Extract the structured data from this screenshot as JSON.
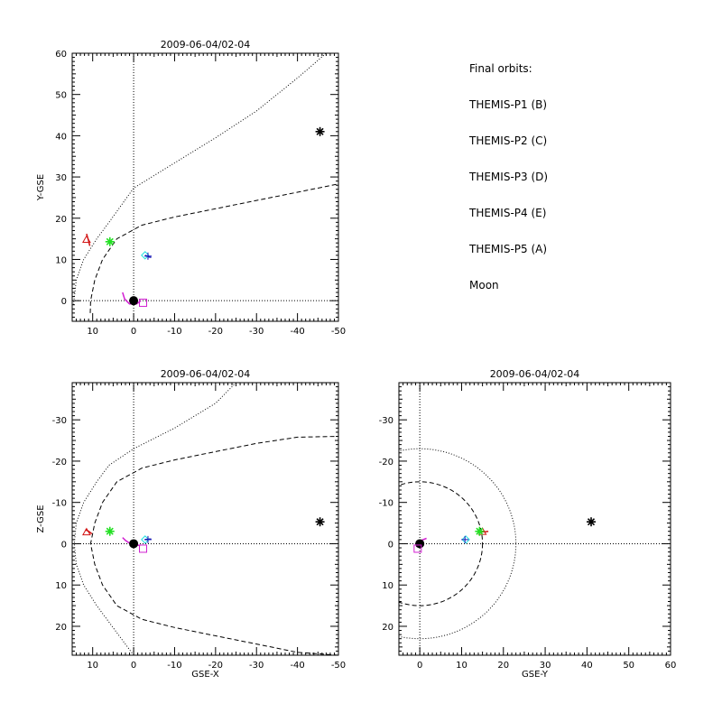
{
  "chart_data": [
    {
      "type": "scatter",
      "title": "2009-06-04/02-04",
      "xlabel": "",
      "ylabel": "Y-GSE",
      "xlim": [
        15,
        -50
      ],
      "ylim": [
        60,
        -5
      ],
      "xticks": [
        10,
        0,
        -10,
        -20,
        -30,
        -40,
        -50
      ],
      "yticks": [
        0,
        10,
        20,
        30,
        40,
        50,
        60
      ],
      "markers": [
        {
          "name": "THEMIS-P1 (B)",
          "symbol": "triangle",
          "color": "#d21414",
          "x": 11.5,
          "y": 14.8
        },
        {
          "name": "THEMIS-P2 (C)",
          "symbol": "asterisk",
          "color": "#22e022",
          "x": 5.8,
          "y": 14.3
        },
        {
          "name": "THEMIS-P3 (D)",
          "symbol": "diamond",
          "color": "#22e0e0",
          "x": -2.8,
          "y": 11.0
        },
        {
          "name": "THEMIS-P4 (E)",
          "symbol": "plus",
          "color": "#1414b4",
          "x": -3.5,
          "y": 10.8
        },
        {
          "name": "THEMIS-P5 (A)",
          "symbol": "square",
          "color": "#d21fd2",
          "x": -2.3,
          "y": -0.5
        },
        {
          "name": "Moon",
          "symbol": "asterisk",
          "color": "#000000",
          "x": -45.5,
          "y": 41.0
        }
      ],
      "orbit_arcs": [
        {
          "color": "#d21414",
          "points": [
            [
              11.5,
              16.2
            ],
            [
              11.0,
              14.5
            ],
            [
              10.7,
              13.3
            ]
          ]
        },
        {
          "color": "#d21fd2",
          "points": [
            [
              2.7,
              2.0
            ],
            [
              2.2,
              0.4
            ],
            [
              1.0,
              -0.8
            ],
            [
              -0.7,
              -0.8
            ],
            [
              -1.8,
              0.0
            ]
          ]
        },
        {
          "color": "#1414b4",
          "points": [
            [
              -2.8,
              11.0
            ],
            [
              -3.7,
              10.6
            ],
            [
              -4.3,
              10.5
            ]
          ]
        }
      ],
      "earth": {
        "x": 0,
        "y": 0
      },
      "magnetopause": [
        [
          10.6,
          -3
        ],
        [
          10.5,
          0
        ],
        [
          9.5,
          5
        ],
        [
          7.6,
          10
        ],
        [
          4.1,
          15
        ],
        [
          -2.0,
          18.3
        ],
        [
          -10,
          20.3
        ],
        [
          -20,
          22.3
        ],
        [
          -30,
          24.3
        ],
        [
          -40,
          26.3
        ],
        [
          -50,
          28.3
        ]
      ],
      "bow_shock": [
        [
          14.7,
          -1
        ],
        [
          14,
          5
        ],
        [
          12.2,
          10
        ],
        [
          9.0,
          15
        ],
        [
          6.0,
          19
        ],
        [
          0,
          27.3
        ],
        [
          -10,
          33.4
        ],
        [
          -20,
          39.5
        ],
        [
          -30,
          46
        ],
        [
          -40,
          54
        ],
        [
          -47,
          60
        ]
      ]
    },
    {
      "type": "scatter",
      "title": "2009-06-04/02-04",
      "xlabel": "GSE-X",
      "ylabel": "Z-GSE",
      "xlim": [
        15,
        -50
      ],
      "ylim": [
        -39,
        27
      ],
      "xticks": [
        10,
        0,
        -10,
        -20,
        -30,
        -40,
        -50
      ],
      "yticks": [
        20,
        10,
        0,
        -10,
        -20,
        -30
      ],
      "markers": [
        {
          "name": "THEMIS-P1 (B)",
          "symbol": "triangle",
          "color": "#d21414",
          "x": 11.5,
          "y": -2.8
        },
        {
          "name": "THEMIS-P2 (C)",
          "symbol": "asterisk",
          "color": "#22e022",
          "x": 5.8,
          "y": -3.0
        },
        {
          "name": "THEMIS-P3 (D)",
          "symbol": "diamond",
          "color": "#22e0e0",
          "x": -2.8,
          "y": -1.0
        },
        {
          "name": "THEMIS-P4 (E)",
          "symbol": "plus",
          "color": "#1414b4",
          "x": -3.5,
          "y": -1.0
        },
        {
          "name": "THEMIS-P5 (A)",
          "symbol": "square",
          "color": "#d21fd2",
          "x": -2.3,
          "y": 1.2
        },
        {
          "name": "Moon",
          "symbol": "asterisk",
          "color": "#000000",
          "x": -45.5,
          "y": -5.3
        }
      ],
      "orbit_arcs": [
        {
          "color": "#d21414",
          "points": [
            [
              11.8,
              -3.4
            ],
            [
              11.0,
              -3.0
            ],
            [
              10.2,
              -2.4
            ]
          ]
        },
        {
          "color": "#d21fd2",
          "points": [
            [
              2.7,
              -1.5
            ],
            [
              2.0,
              -0.8
            ],
            [
              0.8,
              0.0
            ],
            [
              -0.6,
              0.2
            ],
            [
              -1.6,
              0.5
            ]
          ]
        },
        {
          "color": "#1414b4",
          "points": [
            [
              -2.8,
              -1.0
            ],
            [
              -3.7,
              -1.1
            ],
            [
              -4.3,
              -1.1
            ]
          ]
        }
      ],
      "earth": {
        "x": 0,
        "y": 0
      },
      "magnetopause": [
        [
          -50,
          27
        ],
        [
          -40,
          26.3
        ],
        [
          -30,
          24.3
        ],
        [
          -20,
          22.3
        ],
        [
          -10,
          20.3
        ],
        [
          -2.0,
          18.3
        ],
        [
          4.1,
          15
        ],
        [
          7.6,
          10
        ],
        [
          9.5,
          5
        ],
        [
          10.5,
          0
        ],
        [
          9.5,
          -5
        ],
        [
          7.6,
          -10
        ],
        [
          4.1,
          -15
        ],
        [
          -2.0,
          -18.3
        ],
        [
          -10,
          -20.3
        ],
        [
          -20,
          -22.3
        ],
        [
          -30,
          -24.3
        ],
        [
          -40,
          -25.8
        ],
        [
          -50,
          -26
        ]
      ],
      "bow_shock": [
        [
          0,
          27
        ],
        [
          6.0,
          19
        ],
        [
          9.0,
          15
        ],
        [
          12.2,
          10
        ],
        [
          14,
          5
        ],
        [
          14.5,
          0
        ],
        [
          14,
          -5
        ],
        [
          12.2,
          -10
        ],
        [
          9.0,
          -15
        ],
        [
          6.0,
          -19
        ],
        [
          0,
          -23
        ],
        [
          -10,
          -28
        ],
        [
          -20,
          -34
        ],
        [
          -25,
          -39
        ]
      ]
    },
    {
      "type": "scatter",
      "title": "2009-06-04/02-04",
      "xlabel": "GSE-Y",
      "ylabel": "",
      "xlim": [
        -5,
        60
      ],
      "ylim": [
        -39,
        27
      ],
      "xticks": [
        0,
        10,
        20,
        30,
        40,
        50,
        60
      ],
      "yticks": [
        20,
        10,
        0,
        -10,
        -20,
        -30
      ],
      "markers": [
        {
          "name": "THEMIS-P1 (B)",
          "symbol": "triangle",
          "color": "#d21414",
          "x": 15.0,
          "y": -2.9
        },
        {
          "name": "THEMIS-P2 (C)",
          "symbol": "asterisk",
          "color": "#22e022",
          "x": 14.3,
          "y": -3.0
        },
        {
          "name": "THEMIS-P3 (D)",
          "symbol": "diamond",
          "color": "#22e0e0",
          "x": 11.0,
          "y": -1.0
        },
        {
          "name": "THEMIS-P4 (E)",
          "symbol": "plus",
          "color": "#1414b4",
          "x": 10.8,
          "y": -1.0
        },
        {
          "name": "THEMIS-P5 (A)",
          "symbol": "square",
          "color": "#d21fd2",
          "x": -0.5,
          "y": 1.2
        },
        {
          "name": "Moon",
          "symbol": "asterisk",
          "color": "#000000",
          "x": 41.0,
          "y": -5.3
        }
      ],
      "orbit_arcs": [
        {
          "color": "#d21414",
          "points": [
            [
              14.6,
              -2.9
            ],
            [
              15.6,
              -2.9
            ],
            [
              16.4,
              -3.0
            ]
          ]
        },
        {
          "color": "#d21fd2",
          "points": [
            [
              -0.8,
              0.8
            ],
            [
              -0.3,
              -0.3
            ],
            [
              0.6,
              -0.9
            ],
            [
              1.6,
              -1.3
            ]
          ]
        }
      ],
      "earth": {
        "x": 0,
        "y": 0
      },
      "magnetopause_circle": {
        "cx": 0,
        "cy": 0,
        "r": 15
      },
      "bow_shock_circle": {
        "cx": 0,
        "cy": 0,
        "r": 23
      }
    }
  ],
  "legend": {
    "title": "Final orbits:",
    "entries": [
      {
        "label": "THEMIS-P1 (B)",
        "color": "#d21414"
      },
      {
        "label": "THEMIS-P2 (C)",
        "color": "#22e022"
      },
      {
        "label": "THEMIS-P3 (D)",
        "color": "#22e0e0"
      },
      {
        "label": "THEMIS-P4 (E)",
        "color": "#1414b4"
      },
      {
        "label": "THEMIS-P5 (A)",
        "color": "#d21fd2"
      },
      {
        "label": "Moon",
        "color": "#000000"
      }
    ]
  }
}
